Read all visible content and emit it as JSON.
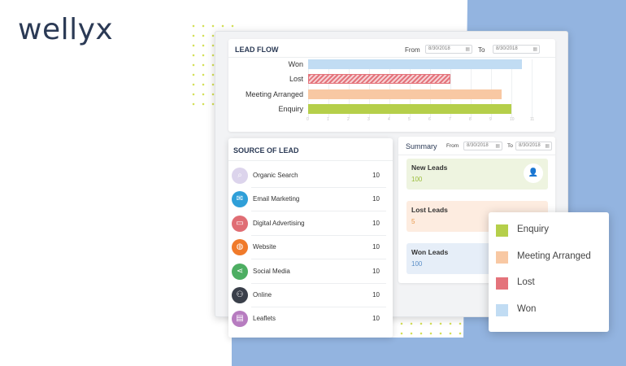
{
  "brand": {
    "logo_text": "wellyx"
  },
  "colors": {
    "enquiry": "#b5cf4a",
    "meeting": "#f8c8a3",
    "lost": "#e4737b",
    "won": "#c1dcf3"
  },
  "lead_flow": {
    "title": "LEAD FLOW",
    "from_label": "From",
    "from_value": "8/30/2018",
    "to_label": "To",
    "to_value": "8/30/2018",
    "chart_data": {
      "type": "bar",
      "orientation": "horizontal",
      "categories": [
        "Won",
        "Lost",
        "Meeting Arranged",
        "Enquiry"
      ],
      "values": [
        10.5,
        7.0,
        9.5,
        10.0
      ],
      "xlim": [
        0,
        11
      ],
      "ticks": [
        0,
        1,
        2,
        3,
        4,
        5,
        6,
        7,
        8,
        9,
        10,
        11
      ],
      "bar_colors": [
        "#c1dcf3",
        "#e4737b",
        "#f8c8a3",
        "#b5cf4a"
      ],
      "hatched": [
        false,
        true,
        false,
        false
      ],
      "grid": true
    }
  },
  "source_of_lead": {
    "title": "SOURCE OF LEAD",
    "items": [
      {
        "label": "Organic Search",
        "count": "10",
        "icon": "search-icon",
        "color": "#dcd4ec"
      },
      {
        "label": "Email Marketing",
        "count": "10",
        "icon": "envelope-icon",
        "color": "#2f9fd8"
      },
      {
        "label": "Digital Advertising",
        "count": "10",
        "icon": "monitor-icon",
        "color": "#e06d74"
      },
      {
        "label": "Website",
        "count": "10",
        "icon": "globe-icon",
        "color": "#f07a2a"
      },
      {
        "label": "Social Media",
        "count": "10",
        "icon": "share-icon",
        "color": "#4dae62"
      },
      {
        "label": "Online",
        "count": "10",
        "icon": "users-icon",
        "color": "#3a3f4a"
      },
      {
        "label": "Leaflets",
        "count": "10",
        "icon": "document-icon",
        "color": "#b77cc0"
      }
    ]
  },
  "summary": {
    "title": "Summary",
    "from_label": "From",
    "from_value": "8/30/2018",
    "to_label": "To",
    "to_value": "8/30/2018",
    "cards": [
      {
        "title": "New Leads",
        "value": "100",
        "bg": "#eef4e0",
        "value_color": "#9bbd3c"
      },
      {
        "title": "Lost Leads",
        "value": "5",
        "bg": "#fdece0",
        "value_color": "#e89a4e"
      },
      {
        "title": "Won Leads",
        "value": "100",
        "bg": "#e6eef8",
        "value_color": "#5c8fc7"
      }
    ]
  },
  "legend": {
    "items": [
      {
        "label": "Enquiry",
        "color": "#b5cf4a"
      },
      {
        "label": "Meeting Arranged",
        "color": "#f8c8a3"
      },
      {
        "label": "Lost",
        "color": "#e4737b"
      },
      {
        "label": "Won",
        "color": "#c1dcf3"
      }
    ]
  }
}
